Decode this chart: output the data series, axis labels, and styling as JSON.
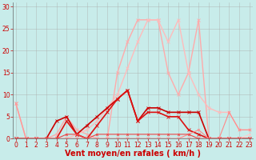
{
  "background_color": "#c8ecea",
  "grid_color": "#aaaaaa",
  "xlabel": "Vent moyen/en rafales ( km/h )",
  "xlabel_color": "#cc0000",
  "xlabel_fontsize": 7,
  "yticks": [
    0,
    5,
    10,
    15,
    20,
    25,
    30
  ],
  "xticks": [
    0,
    1,
    2,
    3,
    4,
    5,
    6,
    7,
    8,
    9,
    10,
    11,
    12,
    13,
    14,
    15,
    16,
    17,
    18,
    19,
    20,
    21,
    22,
    23
  ],
  "tick_color": "#cc0000",
  "tick_fontsize": 5.5,
  "xlim": [
    -0.3,
    23.3
  ],
  "ylim": [
    0,
    31
  ],
  "series": [
    {
      "x": [
        0,
        1,
        2,
        3,
        4,
        5,
        6,
        7,
        8,
        9,
        10,
        11,
        12,
        13,
        14,
        15,
        16,
        17,
        18,
        19,
        20,
        21,
        22,
        23
      ],
      "y": [
        8,
        0,
        0,
        0,
        1,
        5,
        2,
        1,
        0,
        0,
        15,
        22,
        27,
        27,
        27,
        15,
        10,
        15,
        27,
        0,
        0,
        0,
        0,
        0
      ],
      "color": "#ffaaaa",
      "lw": 1.0,
      "marker": "x",
      "ms": 3.0
    },
    {
      "x": [
        0,
        1,
        2,
        3,
        4,
        5,
        6,
        7,
        8,
        9,
        10,
        11,
        12,
        13,
        14,
        15,
        16,
        17,
        18,
        19,
        20,
        21,
        22,
        23
      ],
      "y": [
        0,
        0,
        0,
        0,
        0,
        0,
        1,
        2,
        4,
        7,
        10,
        16,
        22,
        27,
        27,
        22,
        27,
        15,
        10,
        7,
        6,
        6,
        2,
        2
      ],
      "color": "#ffbbbb",
      "lw": 1.0,
      "marker": "x",
      "ms": 3.0
    },
    {
      "x": [
        0,
        1,
        2,
        3,
        4,
        5,
        6,
        7,
        8,
        9,
        10,
        11,
        12,
        13,
        14,
        15,
        16,
        17,
        18,
        19,
        20,
        21,
        22,
        23
      ],
      "y": [
        0,
        0,
        0,
        0,
        4,
        5,
        1,
        3,
        5,
        7,
        9,
        11,
        4,
        7,
        7,
        6,
        6,
        6,
        6,
        0,
        0,
        0,
        0,
        0
      ],
      "color": "#cc0000",
      "lw": 1.2,
      "marker": "x",
      "ms": 3.0
    },
    {
      "x": [
        0,
        1,
        2,
        3,
        4,
        5,
        6,
        7,
        8,
        9,
        10,
        11,
        12,
        13,
        14,
        15,
        16,
        17,
        18,
        19,
        20,
        21,
        22,
        23
      ],
      "y": [
        0,
        0,
        0,
        0,
        0,
        4,
        1,
        0,
        3,
        6,
        9,
        11,
        4,
        6,
        6,
        5,
        5,
        2,
        1,
        0,
        0,
        0,
        0,
        0
      ],
      "color": "#dd1111",
      "lw": 1.2,
      "marker": "x",
      "ms": 3.0
    },
    {
      "x": [
        0,
        1,
        2,
        3,
        4,
        5,
        6,
        7,
        8,
        9,
        10,
        11,
        12,
        13,
        14,
        15,
        16,
        17,
        18,
        19,
        20,
        21,
        22,
        23
      ],
      "y": [
        0,
        0,
        0,
        0,
        0,
        0,
        0,
        0,
        0,
        0,
        0,
        0,
        0,
        0,
        0,
        0,
        0,
        0,
        0,
        0,
        0,
        0,
        0,
        1
      ],
      "color": "#ffcccc",
      "lw": 0.8,
      "marker": "x",
      "ms": 2.0
    },
    {
      "x": [
        0,
        1,
        2,
        3,
        4,
        5,
        6,
        7,
        8,
        9,
        10,
        11,
        12,
        13,
        14,
        15,
        16,
        17,
        18,
        19,
        20,
        21,
        22,
        23
      ],
      "y": [
        0,
        0,
        0,
        0,
        0,
        0,
        0,
        0,
        0,
        0,
        0,
        0,
        0,
        0,
        0,
        0,
        0,
        1,
        2,
        0,
        0,
        6,
        2,
        2
      ],
      "color": "#ff8888",
      "lw": 0.8,
      "marker": "x",
      "ms": 2.0
    },
    {
      "x": [
        0,
        1,
        2,
        3,
        4,
        5,
        6,
        7,
        8,
        9,
        10,
        11,
        12,
        13,
        14,
        15,
        16,
        17,
        18,
        19,
        20,
        21,
        22,
        23
      ],
      "y": [
        8,
        0,
        0,
        0,
        0,
        0,
        0,
        0,
        0,
        0,
        0,
        0,
        0,
        0,
        0,
        0,
        0,
        0,
        0,
        0,
        0,
        0,
        0,
        0
      ],
      "color": "#ff9999",
      "lw": 1.0,
      "marker": "x",
      "ms": 3.0
    },
    {
      "x": [
        0,
        1,
        2,
        3,
        4,
        5,
        6,
        7,
        8,
        9,
        10,
        11,
        12,
        13,
        14,
        15,
        16,
        17,
        18,
        19,
        20,
        21,
        22,
        23
      ],
      "y": [
        0,
        0,
        0,
        0,
        0,
        1,
        1,
        0,
        1,
        1,
        1,
        1,
        1,
        1,
        1,
        1,
        1,
        1,
        0,
        0,
        0,
        0,
        0,
        0
      ],
      "color": "#ee4444",
      "lw": 0.8,
      "marker": "x",
      "ms": 2.0
    }
  ]
}
